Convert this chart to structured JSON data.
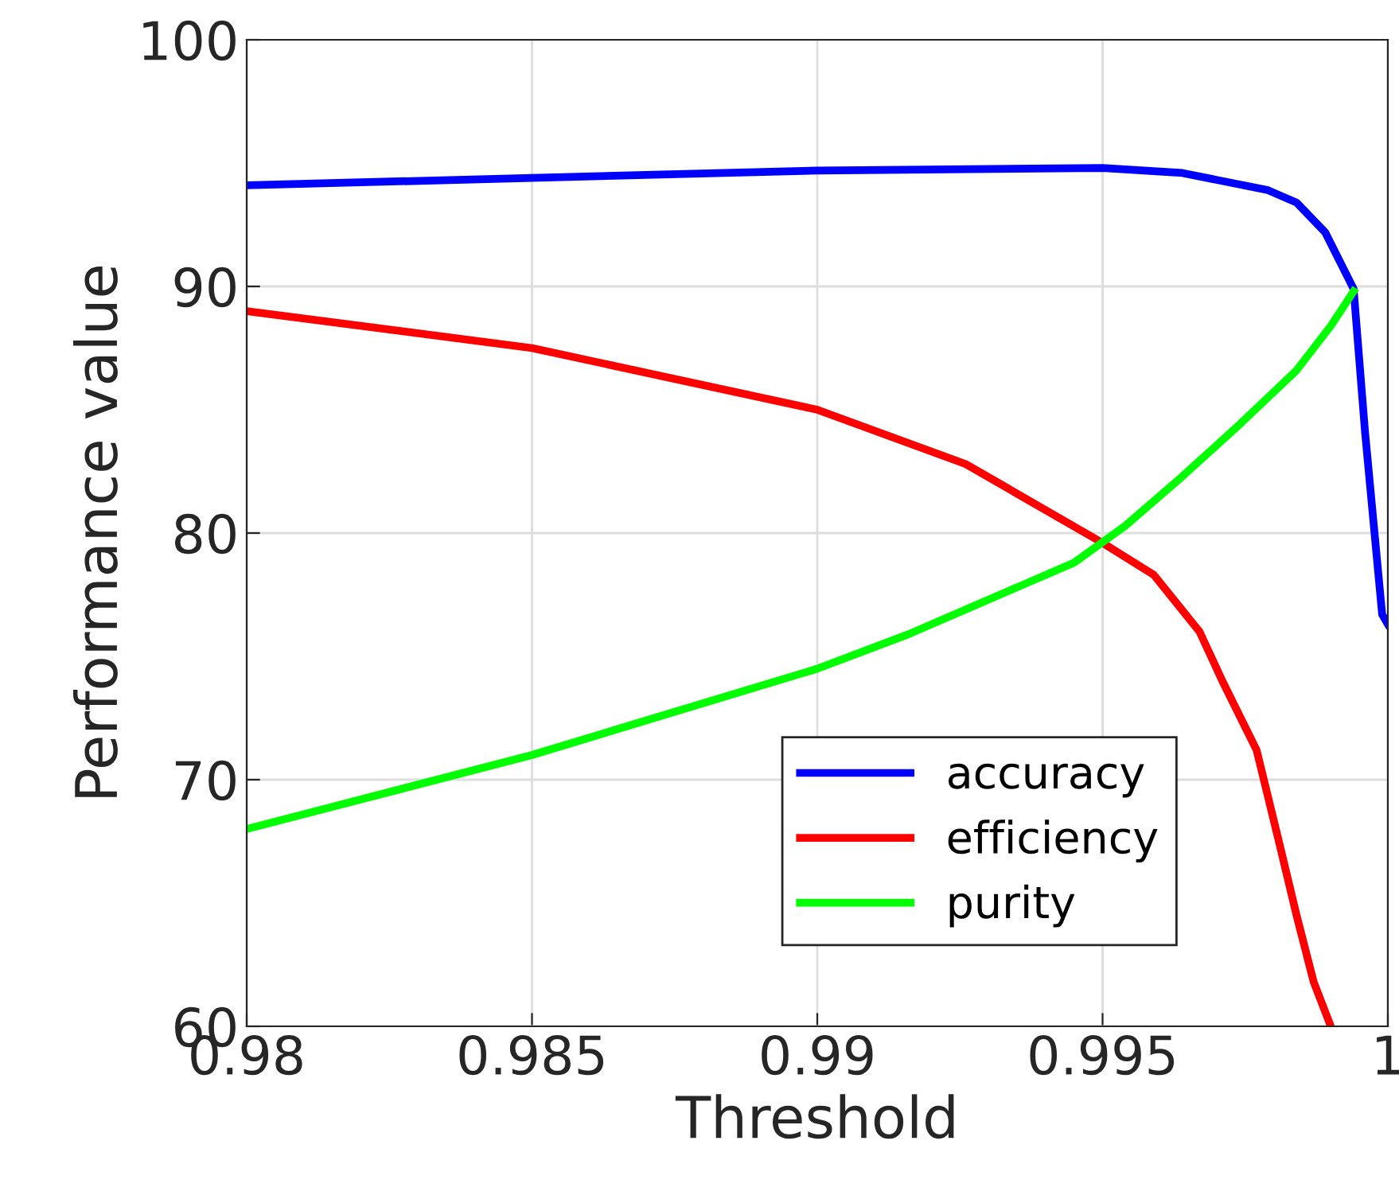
{
  "chart_data": {
    "type": "line",
    "xlabel": "Threshold",
    "ylabel": "Performance value",
    "xlim": [
      0.98,
      1
    ],
    "ylim": [
      60,
      100
    ],
    "xticks": [
      0.98,
      0.985,
      0.99,
      0.995,
      1
    ],
    "yticks": [
      60,
      70,
      80,
      90,
      100
    ],
    "grid": true,
    "legend": "bottom right",
    "line_style": "solid",
    "marker": "none",
    "series": [
      {
        "name": "accuracy",
        "color": "#0000ff",
        "x": [
          0.98,
          0.985,
          0.99,
          0.995,
          0.9964,
          0.9979,
          0.9984,
          0.9989,
          0.9994,
          0.9996,
          0.9999,
          1.0
        ],
        "values": [
          94.1,
          94.4,
          94.7,
          94.8,
          94.6,
          93.9,
          93.4,
          92.2,
          89.9,
          84.1,
          76.7,
          76.3
        ]
      },
      {
        "name": "efficiency",
        "color": "#ff0000",
        "x": [
          0.98,
          0.985,
          0.99,
          0.9926,
          0.995,
          0.9959,
          0.9967,
          0.9971,
          0.9977,
          0.9981,
          0.9984,
          0.9987,
          0.999
        ],
        "values": [
          89.0,
          87.5,
          85.0,
          82.8,
          79.6,
          78.3,
          76.0,
          74.0,
          71.2,
          67.4,
          64.5,
          61.8,
          60
        ]
      },
      {
        "name": "purity",
        "color": "#00ff00",
        "x": [
          0.98,
          0.985,
          0.99,
          0.9916,
          0.9936,
          0.9945,
          0.9954,
          0.9964,
          0.9974,
          0.9984,
          0.999,
          0.9994
        ],
        "values": [
          68.0,
          71.0,
          74.5,
          75.9,
          77.9,
          78.8,
          80.3,
          82.3,
          84.4,
          86.6,
          88.4,
          89.8
        ]
      }
    ]
  }
}
